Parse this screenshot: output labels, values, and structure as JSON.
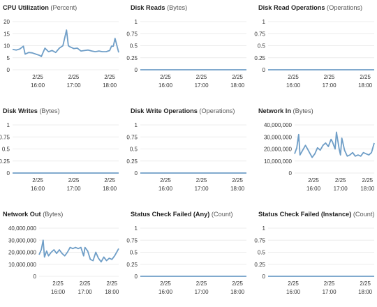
{
  "series_color": "#6f9ec7",
  "panels": [
    {
      "title": "CPU Utilization",
      "unit": "(Percent)",
      "chart_data": {
        "type": "line",
        "y_ticks": [
          "20",
          "15",
          "10",
          "5",
          "0"
        ],
        "x_ticks": [
          [
            "2/25",
            "16:00"
          ],
          [
            "2/25",
            "17:00"
          ],
          [
            "2/25",
            "18:00"
          ]
        ],
        "ylim": [
          0,
          20
        ],
        "x_label_hours": [
          16,
          17,
          18
        ],
        "xlim_hours": [
          15.3,
          18.25
        ],
        "x_hours": [
          15.3,
          15.4,
          15.5,
          15.6,
          15.65,
          15.75,
          15.85,
          15.95,
          16.05,
          16.1,
          16.2,
          16.3,
          16.4,
          16.5,
          16.6,
          16.7,
          16.8,
          16.85,
          16.9,
          17.0,
          17.1,
          17.2,
          17.3,
          17.4,
          17.5,
          17.6,
          17.7,
          17.8,
          17.9,
          18.0,
          18.05,
          18.1,
          18.15,
          18.25
        ],
        "values": [
          8.5,
          8.2,
          8.6,
          9.8,
          6.5,
          7.2,
          7.0,
          6.5,
          6.0,
          5.5,
          9.0,
          7.5,
          8.0,
          7.2,
          9.0,
          10.0,
          16.5,
          10.0,
          9.5,
          8.8,
          9.0,
          7.8,
          8.0,
          8.2,
          7.8,
          7.5,
          7.8,
          7.5,
          7.5,
          8.0,
          9.8,
          9.8,
          13.0,
          7.2
        ]
      }
    },
    {
      "title": "Disk Reads",
      "unit": "(Bytes)",
      "chart_data": {
        "type": "line",
        "y_ticks": [
          "1",
          "0.75",
          "0.5",
          "0.25",
          "0"
        ],
        "x_ticks": [
          [
            "2/25",
            "16:00"
          ],
          [
            "2/25",
            "17:00"
          ],
          [
            "2/25",
            "18:00"
          ]
        ],
        "ylim": [
          0,
          1
        ],
        "x_label_hours": [
          16,
          17,
          18
        ],
        "xlim_hours": [
          15.3,
          18.25
        ],
        "x_hours": [
          15.3,
          18.25
        ],
        "values": [
          0,
          0
        ]
      }
    },
    {
      "title": "Disk Read Operations",
      "unit": "(Operations)",
      "chart_data": {
        "type": "line",
        "y_ticks": [
          "1",
          "0.75",
          "0.5",
          "0.25",
          "0"
        ],
        "x_ticks": [
          [
            "2/25",
            "16:00"
          ],
          [
            "2/25",
            "17:00"
          ],
          [
            "2/25",
            "18:00"
          ]
        ],
        "ylim": [
          0,
          1
        ],
        "x_label_hours": [
          16,
          17,
          18
        ],
        "xlim_hours": [
          15.3,
          18.25
        ],
        "x_hours": [
          15.3,
          18.25
        ],
        "values": [
          0,
          0
        ]
      }
    },
    {
      "title": "Disk Writes",
      "unit": "(Bytes)",
      "chart_data": {
        "type": "line",
        "y_ticks": [
          "1",
          "0.75",
          "0.5",
          "0.25",
          "0"
        ],
        "x_ticks": [
          [
            "2/25",
            "16:00"
          ],
          [
            "2/25",
            "17:00"
          ],
          [
            "2/25",
            "18:00"
          ]
        ],
        "ylim": [
          0,
          1
        ],
        "x_label_hours": [
          16,
          17,
          18
        ],
        "xlim_hours": [
          15.3,
          18.25
        ],
        "x_hours": [
          15.3,
          18.25
        ],
        "values": [
          0,
          0
        ]
      }
    },
    {
      "title": "Disk Write Operations",
      "unit": "(Operations)",
      "chart_data": {
        "type": "line",
        "y_ticks": [
          "1",
          "0.75",
          "0.5",
          "0.25",
          "0"
        ],
        "x_ticks": [
          [
            "2/25",
            "16:00"
          ],
          [
            "2/25",
            "17:00"
          ],
          [
            "2/25",
            "18:00"
          ]
        ],
        "ylim": [
          0,
          1
        ],
        "x_label_hours": [
          16,
          17,
          18
        ],
        "xlim_hours": [
          15.3,
          18.25
        ],
        "x_hours": [
          15.3,
          18.25
        ],
        "values": [
          0,
          0
        ]
      }
    },
    {
      "title": "Network In",
      "unit": "(Bytes)",
      "chart_data": {
        "type": "line",
        "y_ticks": [
          "40,000,000",
          "30,000,000",
          "20,000,000",
          "10,000,000",
          "0"
        ],
        "x_ticks": [
          [
            "2/25",
            "16:00"
          ],
          [
            "2/25",
            "17:00"
          ],
          [
            "2/25",
            "18:00"
          ]
        ],
        "ylim": [
          0,
          40000000
        ],
        "x_label_hours": [
          16,
          17,
          18
        ],
        "xlim_hours": [
          15.3,
          18.25
        ],
        "x_hours": [
          15.3,
          15.38,
          15.45,
          15.5,
          15.6,
          15.7,
          15.78,
          15.85,
          15.95,
          16.05,
          16.15,
          16.25,
          16.35,
          16.45,
          16.55,
          16.65,
          16.7,
          16.8,
          16.85,
          16.95,
          17.0,
          17.05,
          17.15,
          17.25,
          17.35,
          17.45,
          17.55,
          17.65,
          17.75,
          17.85,
          17.95,
          18.05,
          18.15,
          18.25
        ],
        "values": [
          16000000,
          21000000,
          32000000,
          15000000,
          19000000,
          23000000,
          20000000,
          17000000,
          13000000,
          16000000,
          21000000,
          19000000,
          23000000,
          25000000,
          22000000,
          28000000,
          26000000,
          20000000,
          34000000,
          20000000,
          15000000,
          29000000,
          19000000,
          14000000,
          15000000,
          17000000,
          14000000,
          15000000,
          14000000,
          17000000,
          16000000,
          15000000,
          17000000,
          25000000
        ]
      }
    },
    {
      "title": "Network Out",
      "unit": "(Bytes)",
      "chart_data": {
        "type": "line",
        "y_ticks": [
          "40,000,000",
          "30,000,000",
          "20,000,000",
          "10,000,000",
          "0"
        ],
        "x_ticks": [
          [
            "2/25",
            "16:00"
          ],
          [
            "2/25",
            "17:00"
          ],
          [
            "2/25",
            "18:00"
          ]
        ],
        "ylim": [
          0,
          40000000
        ],
        "x_label_hours": [
          16,
          17,
          18
        ],
        "xlim_hours": [
          15.3,
          18.25
        ],
        "x_hours": [
          15.3,
          15.38,
          15.45,
          15.5,
          15.58,
          15.65,
          15.75,
          15.85,
          15.95,
          16.05,
          16.15,
          16.25,
          16.35,
          16.45,
          16.55,
          16.65,
          16.75,
          16.85,
          16.95,
          17.0,
          17.1,
          17.2,
          17.3,
          17.4,
          17.5,
          17.6,
          17.7,
          17.8,
          17.9,
          18.0,
          18.1,
          18.25
        ],
        "values": [
          18000000,
          22000000,
          30000000,
          16000000,
          21000000,
          17000000,
          20000000,
          22000000,
          19000000,
          22000000,
          19000000,
          17000000,
          20000000,
          24000000,
          23000000,
          24000000,
          23000000,
          24000000,
          17000000,
          24000000,
          21000000,
          14000000,
          13000000,
          20000000,
          15000000,
          12000000,
          16000000,
          13000000,
          15000000,
          14000000,
          17000000,
          23000000
        ]
      }
    },
    {
      "title": "Status Check Failed (Any)",
      "unit": "(Count)",
      "chart_data": {
        "type": "line",
        "y_ticks": [
          "1",
          "0.75",
          "0.5",
          "0.25",
          "0"
        ],
        "x_ticks": [
          [
            "2/25",
            "16:00"
          ],
          [
            "2/25",
            "17:00"
          ],
          [
            "2/25",
            "18:00"
          ]
        ],
        "ylim": [
          0,
          1
        ],
        "x_label_hours": [
          16,
          17,
          18
        ],
        "xlim_hours": [
          15.3,
          18.25
        ],
        "x_hours": [
          15.3,
          18.25
        ],
        "values": [
          0,
          0
        ]
      }
    },
    {
      "title": "Status Check Failed (Instance)",
      "unit": "(Count)",
      "chart_data": {
        "type": "line",
        "y_ticks": [
          "1",
          "0.75",
          "0.5",
          "0.25",
          "0"
        ],
        "x_ticks": [
          [
            "2/25",
            "16:00"
          ],
          [
            "2/25",
            "17:00"
          ],
          [
            "2/25",
            "18:00"
          ]
        ],
        "ylim": [
          0,
          1
        ],
        "x_label_hours": [
          16,
          17,
          18
        ],
        "xlim_hours": [
          15.3,
          18.25
        ],
        "x_hours": [
          15.3,
          18.25
        ],
        "values": [
          0,
          0
        ]
      }
    }
  ]
}
